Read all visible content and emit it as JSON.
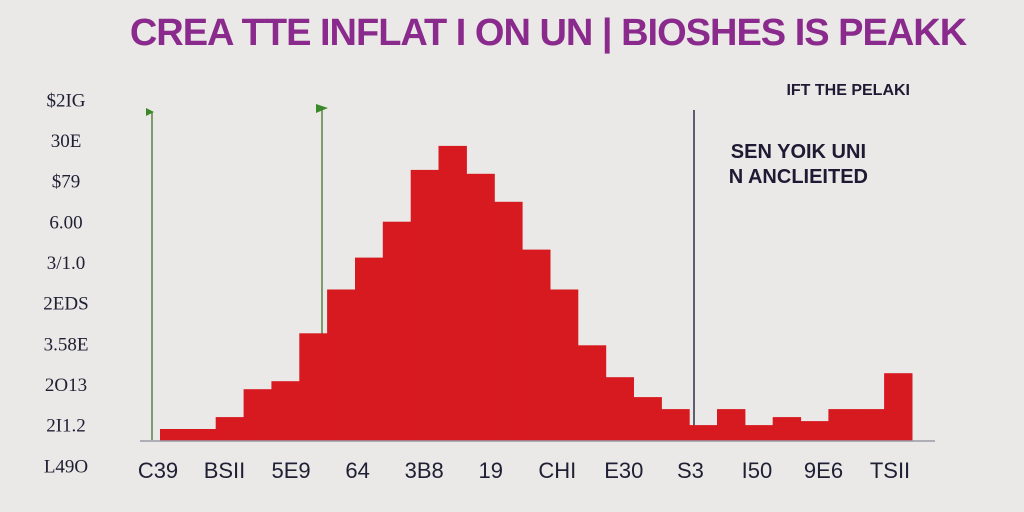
{
  "chart_data": {
    "type": "bar",
    "title": "CREA TTE INFLAT I ON UN | BIOSHES IS PEAKK",
    "annotations": [
      {
        "text": "IFT THE PELAKI"
      },
      {
        "text": "SEN YOIK UNI"
      },
      {
        "text": "N ANCLIEITED"
      }
    ],
    "y_tick_labels": [
      "$2IG",
      "30E",
      "$79",
      "6.00",
      "3/1.0",
      "2EDS",
      "3.58E",
      "2O13",
      "2I1.2",
      "L49O"
    ],
    "x_tick_labels": [
      "C39",
      "BSII",
      "5E9",
      "64",
      "3B8",
      "19",
      "CHI",
      "E30",
      "S3",
      "I50",
      "9E6",
      "TSII"
    ],
    "values": [
      0.3,
      0.3,
      0.6,
      1.3,
      1.5,
      2.7,
      3.8,
      4.6,
      5.5,
      6.8,
      7.4,
      6.7,
      6.0,
      4.8,
      3.8,
      2.4,
      1.6,
      1.1,
      0.8,
      0.4,
      0.8,
      0.4,
      0.6,
      0.5,
      0.8,
      0.8,
      1.7
    ],
    "ylim": [
      0,
      8
    ],
    "grid": false,
    "colors": {
      "bars": "#d71920",
      "title": "#8a2a8c",
      "text": "#1f1a33"
    }
  }
}
